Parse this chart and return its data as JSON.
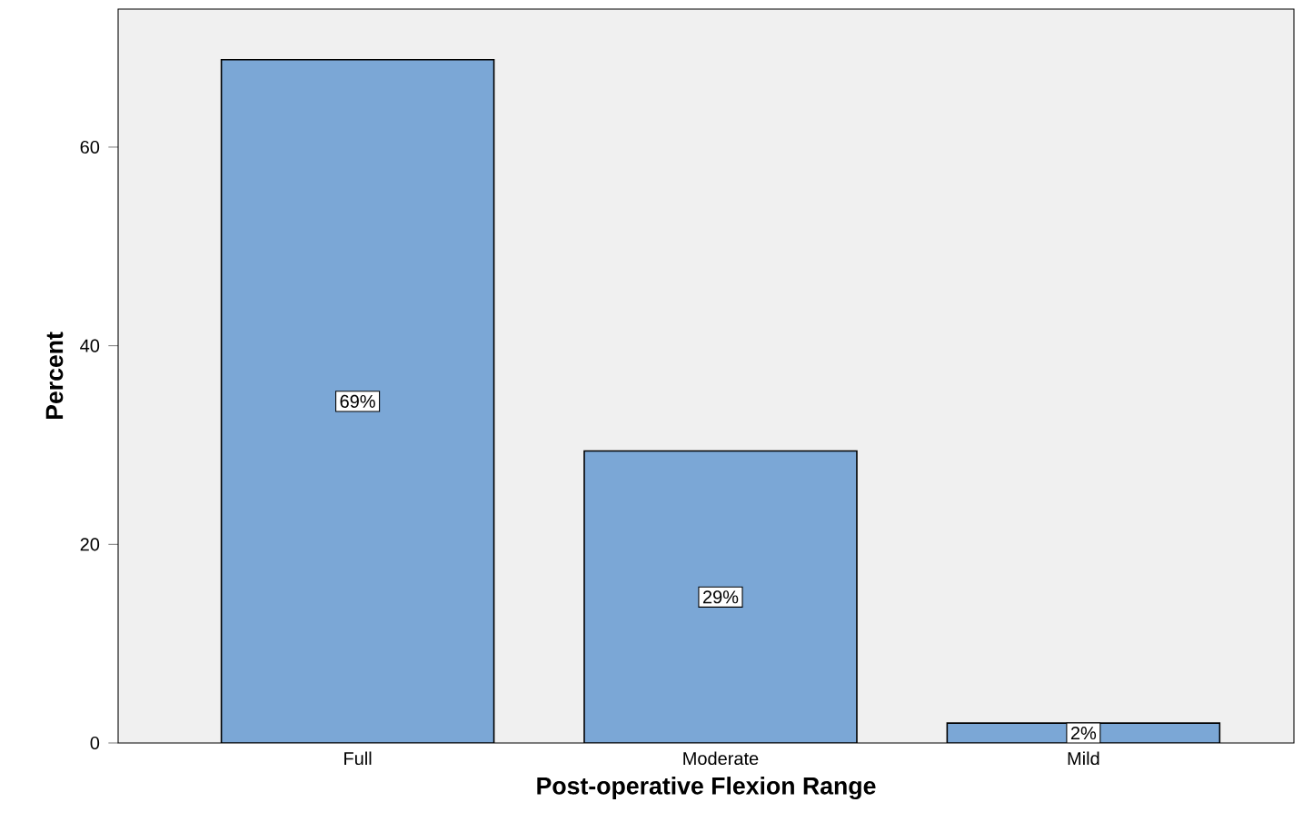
{
  "chart_data": {
    "type": "bar",
    "xlabel": "Post-operative Flexion Range",
    "ylabel": "Percent",
    "categories": [
      "Full",
      "Moderate",
      "Mild"
    ],
    "values": [
      68.8,
      29.4,
      2.0
    ],
    "value_labels": [
      "69%",
      "29%",
      "2%"
    ],
    "color": "#7ba7d6",
    "ylim": [
      0,
      73.9
    ],
    "yticks": [
      0,
      20,
      40,
      60
    ]
  }
}
